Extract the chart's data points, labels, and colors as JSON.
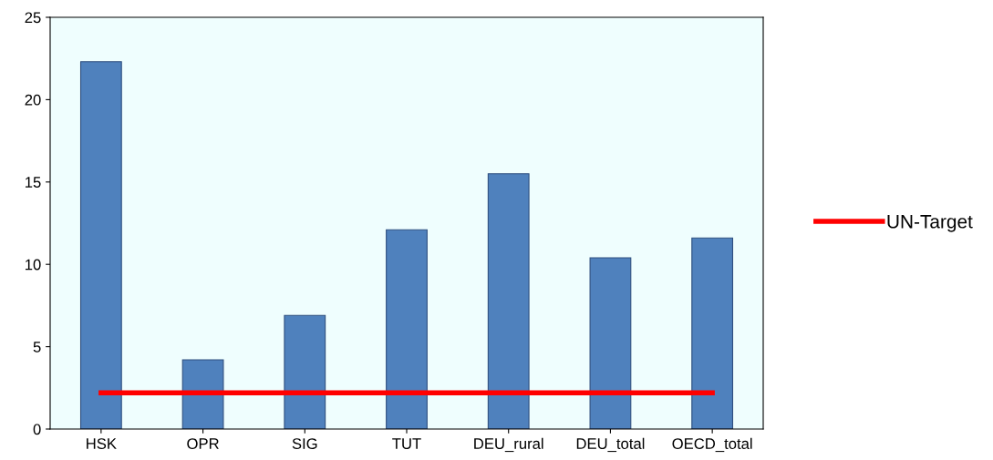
{
  "chart_data": {
    "type": "bar",
    "categories": [
      "HSK",
      "OPR",
      "SIG",
      "TUT",
      "DEU_rural",
      "DEU_total",
      "OECD_total"
    ],
    "series": [
      {
        "color": "#4f81bd",
        "values": [
          22.3,
          4.2,
          6.9,
          12.1,
          15.5,
          10.4,
          11.6
        ]
      },
      {
        "type": "line",
        "name": "UN-Target",
        "color": "#ff0000",
        "values": [
          2.2,
          2.2,
          2.2,
          2.2,
          2.2,
          2.2,
          2.2
        ]
      }
    ],
    "ylim": [
      0,
      25
    ],
    "yticks": [
      0,
      5,
      10,
      15,
      20,
      25
    ],
    "grid": false,
    "legend": "right",
    "marker": "none",
    "line_style": "solid"
  }
}
